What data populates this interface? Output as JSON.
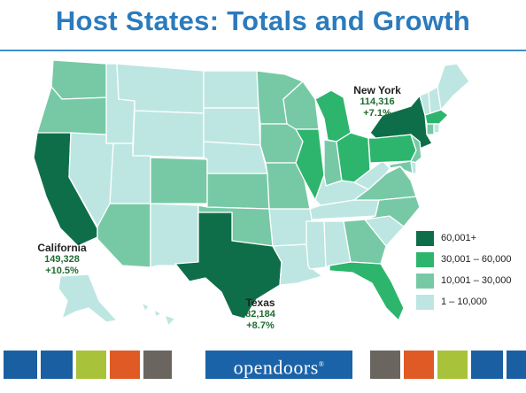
{
  "title": "Host States:  Totals and Growth",
  "colors": {
    "c1": "#0f6e4a",
    "c2": "#2db56d",
    "c3": "#77c9a5",
    "c4": "#bde6e2",
    "title": "#2b7bbd",
    "value_text": "#1f6b33"
  },
  "callouts": {
    "new_york": {
      "name": "New York",
      "total": "114,316",
      "growth": "+7.1%"
    },
    "california": {
      "name": "California",
      "total": "149,328",
      "growth": "+10.5%"
    },
    "texas": {
      "name": "Texas",
      "total": "82,184",
      "growth": "+8.7%"
    }
  },
  "legend": [
    {
      "label": "60,001+",
      "color": "#0f6e4a"
    },
    {
      "label": "30,001 – 60,000",
      "color": "#2db56d"
    },
    {
      "label": "10,001 – 30,000",
      "color": "#77c9a5"
    },
    {
      "label": "1 – 10,000",
      "color": "#bde6e2"
    }
  ],
  "state_tiers": {
    "60,001+": [
      "California",
      "Texas",
      "New York"
    ],
    "30,001 – 60,000": [
      "Michigan",
      "Illinois",
      "Ohio",
      "Pennsylvania",
      "Massachusetts",
      "Florida"
    ],
    "10,001 – 30,000": [
      "Washington",
      "Oregon",
      "Colorado",
      "Arizona",
      "Minnesota",
      "Iowa",
      "Missouri",
      "Kansas",
      "Oklahoma",
      "Wisconsin",
      "Indiana",
      "Virginia",
      "North Carolina",
      "Georgia",
      "New Jersey",
      "Maryland",
      "Connecticut"
    ],
    "1 – 10,000": [
      "Idaho",
      "Montana",
      "Wyoming",
      "Nevada",
      "Utah",
      "New Mexico",
      "North Dakota",
      "South Dakota",
      "Nebraska",
      "Arkansas",
      "Louisiana",
      "Mississippi",
      "Alabama",
      "Tennessee",
      "Kentucky",
      "West Virginia",
      "South Carolina",
      "Maine",
      "Vermont",
      "New Hampshire",
      "Rhode Island",
      "Delaware",
      "Alaska",
      "Hawaii"
    ]
  },
  "footer": {
    "brand": "opendoors",
    "brand_mark": "®",
    "tile_colors": [
      "#1b5fa3",
      "#1b5fa3",
      "#a8c23a",
      "#e05a25",
      "#6b6560",
      "#6b6560",
      "#e05a25",
      "#a8c23a",
      "#1b5fa3",
      "#1b5fa3"
    ]
  }
}
